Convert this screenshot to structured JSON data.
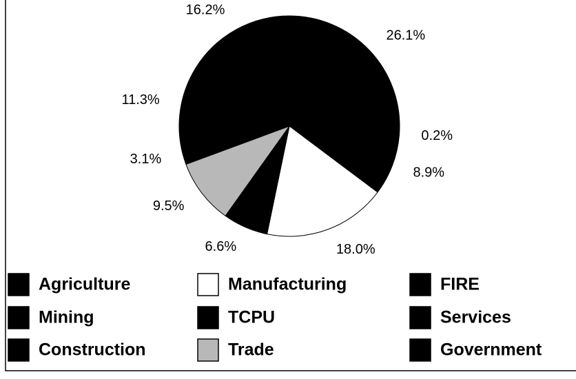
{
  "chart_data": {
    "type": "pie",
    "categories": [
      "Agriculture",
      "Mining",
      "Construction",
      "Manufacturing",
      "TCPU",
      "Trade",
      "FIRE",
      "Services",
      "Government"
    ],
    "values": [
      26.1,
      0.2,
      8.9,
      18.0,
      6.6,
      9.5,
      3.1,
      11.3,
      16.2
    ],
    "value_labels": [
      "26.1%",
      "0.2%",
      "8.9%",
      "18.0%",
      "6.6%",
      "9.5%",
      "3.1%",
      "11.3%",
      "16.2%"
    ],
    "colors": [
      "#000000",
      "#000000",
      "#000000",
      "#ffffff",
      "#000000",
      "#b8b8b8",
      "#000000",
      "#000000",
      "#000000"
    ]
  }
}
